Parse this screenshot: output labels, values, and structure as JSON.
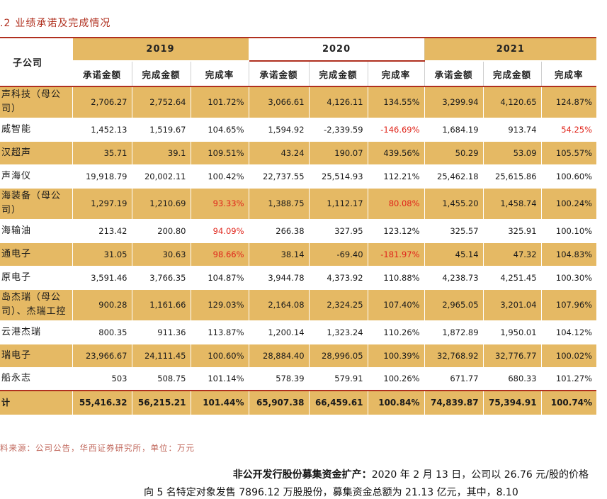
{
  "caption": {
    "number": ".2",
    "title": "业绩承诺及完成情况"
  },
  "header": {
    "subsidiary_label": "子公司",
    "years": [
      "2019",
      "2020",
      "2021"
    ],
    "metrics": [
      "承诺金额",
      "完成金额",
      "完成率"
    ]
  },
  "rows": [
    {
      "name": "声科技（母公司）",
      "cells": [
        {
          "v": "2,706.27"
        },
        {
          "v": "2,752.64"
        },
        {
          "v": "101.72%"
        },
        {
          "v": "3,066.61"
        },
        {
          "v": "4,126.11"
        },
        {
          "v": "134.55%"
        },
        {
          "v": "3,299.94"
        },
        {
          "v": "4,120.65"
        },
        {
          "v": "124.87%"
        }
      ]
    },
    {
      "name": "威智能",
      "cells": [
        {
          "v": "1,452.13"
        },
        {
          "v": "1,519.67"
        },
        {
          "v": "104.65%"
        },
        {
          "v": "1,594.92"
        },
        {
          "v": "-2,339.59"
        },
        {
          "v": "-146.69%",
          "red": true
        },
        {
          "v": "1,684.19"
        },
        {
          "v": "913.74"
        },
        {
          "v": "54.25%",
          "red": true
        }
      ]
    },
    {
      "name": "汉超声",
      "cells": [
        {
          "v": "35.71"
        },
        {
          "v": "39.1"
        },
        {
          "v": "109.51%"
        },
        {
          "v": "43.24"
        },
        {
          "v": "190.07"
        },
        {
          "v": "439.56%"
        },
        {
          "v": "50.29"
        },
        {
          "v": "53.09"
        },
        {
          "v": "105.57%"
        }
      ]
    },
    {
      "name": "声海仪",
      "cells": [
        {
          "v": "19,918.79"
        },
        {
          "v": "20,002.11"
        },
        {
          "v": "100.42%"
        },
        {
          "v": "22,737.55"
        },
        {
          "v": "25,514.93"
        },
        {
          "v": "112.21%"
        },
        {
          "v": "25,462.18"
        },
        {
          "v": "25,615.86"
        },
        {
          "v": "100.60%"
        }
      ]
    },
    {
      "name": "海装备（母公司）",
      "cells": [
        {
          "v": "1,297.19"
        },
        {
          "v": "1,210.69"
        },
        {
          "v": "93.33%",
          "red": true
        },
        {
          "v": "1,388.75"
        },
        {
          "v": "1,112.17"
        },
        {
          "v": "80.08%",
          "red": true
        },
        {
          "v": "1,455.20"
        },
        {
          "v": "1,458.74"
        },
        {
          "v": "100.24%"
        }
      ]
    },
    {
      "name": "海输油",
      "cells": [
        {
          "v": "213.42"
        },
        {
          "v": "200.80"
        },
        {
          "v": "94.09%",
          "red": true
        },
        {
          "v": "266.38"
        },
        {
          "v": "327.95"
        },
        {
          "v": "123.12%"
        },
        {
          "v": "325.57"
        },
        {
          "v": "325.91"
        },
        {
          "v": "100.10%"
        }
      ]
    },
    {
      "name": "通电子",
      "cells": [
        {
          "v": "31.05"
        },
        {
          "v": "30.63"
        },
        {
          "v": "98.66%",
          "red": true
        },
        {
          "v": "38.14"
        },
        {
          "v": "-69.40"
        },
        {
          "v": "-181.97%",
          "red": true
        },
        {
          "v": "45.14"
        },
        {
          "v": "47.32"
        },
        {
          "v": "104.83%"
        }
      ]
    },
    {
      "name": "原电子",
      "cells": [
        {
          "v": "3,591.46"
        },
        {
          "v": "3,766.35"
        },
        {
          "v": "104.87%"
        },
        {
          "v": "3,944.78"
        },
        {
          "v": "4,373.92"
        },
        {
          "v": "110.88%"
        },
        {
          "v": "4,238.73"
        },
        {
          "v": "4,251.45"
        },
        {
          "v": "100.30%"
        }
      ]
    },
    {
      "name": "岛杰瑞（母公司）、杰瑞工控",
      "cells": [
        {
          "v": "900.28"
        },
        {
          "v": "1,161.66"
        },
        {
          "v": "129.03%"
        },
        {
          "v": "2,164.08"
        },
        {
          "v": "2,324.25"
        },
        {
          "v": "107.40%"
        },
        {
          "v": "2,965.05"
        },
        {
          "v": "3,201.04"
        },
        {
          "v": "107.96%"
        }
      ]
    },
    {
      "name": "云港杰瑞",
      "cells": [
        {
          "v": "800.35"
        },
        {
          "v": "911.36"
        },
        {
          "v": "113.87%"
        },
        {
          "v": "1,200.14"
        },
        {
          "v": "1,323.24"
        },
        {
          "v": "110.26%"
        },
        {
          "v": "1,872.89"
        },
        {
          "v": "1,950.01"
        },
        {
          "v": "104.12%"
        }
      ]
    },
    {
      "name": "瑞电子",
      "cells": [
        {
          "v": "23,966.67"
        },
        {
          "v": "24,111.45"
        },
        {
          "v": "100.60%"
        },
        {
          "v": "28,884.40"
        },
        {
          "v": "28,996.05"
        },
        {
          "v": "100.39%"
        },
        {
          "v": "32,768.92"
        },
        {
          "v": "32,776.77"
        },
        {
          "v": "100.02%"
        }
      ]
    },
    {
      "name": "船永志",
      "cells": [
        {
          "v": "503"
        },
        {
          "v": "508.75"
        },
        {
          "v": "101.14%"
        },
        {
          "v": "578.39"
        },
        {
          "v": "579.91"
        },
        {
          "v": "100.26%"
        },
        {
          "v": "671.77"
        },
        {
          "v": "680.33"
        },
        {
          "v": "101.27%"
        }
      ]
    }
  ],
  "total": {
    "name": "计",
    "cells": [
      {
        "v": "55,416.32"
      },
      {
        "v": "56,215.21"
      },
      {
        "v": "101.44%"
      },
      {
        "v": "65,907.38"
      },
      {
        "v": "66,459.61"
      },
      {
        "v": "100.84%"
      },
      {
        "v": "74,839.87"
      },
      {
        "v": "75,394.91"
      },
      {
        "v": "100.74%"
      }
    ]
  },
  "source_note": "料来源：公司公告，华西证券研究所，单位：万元",
  "paragraph": {
    "bold_lead": "非公开发行股份募集资金扩产：",
    "line1": "2020 年 2 月 13 日，公司以 26.76 元/股的价格",
    "line2": "向 5 名特定对象发售 7896.12 万股股份，募集资金总额为 21.13 亿元，其中，8.10"
  },
  "colors": {
    "gold": "#e5b964",
    "accent_red": "#b0301f",
    "negative_red": "#e0251b"
  }
}
